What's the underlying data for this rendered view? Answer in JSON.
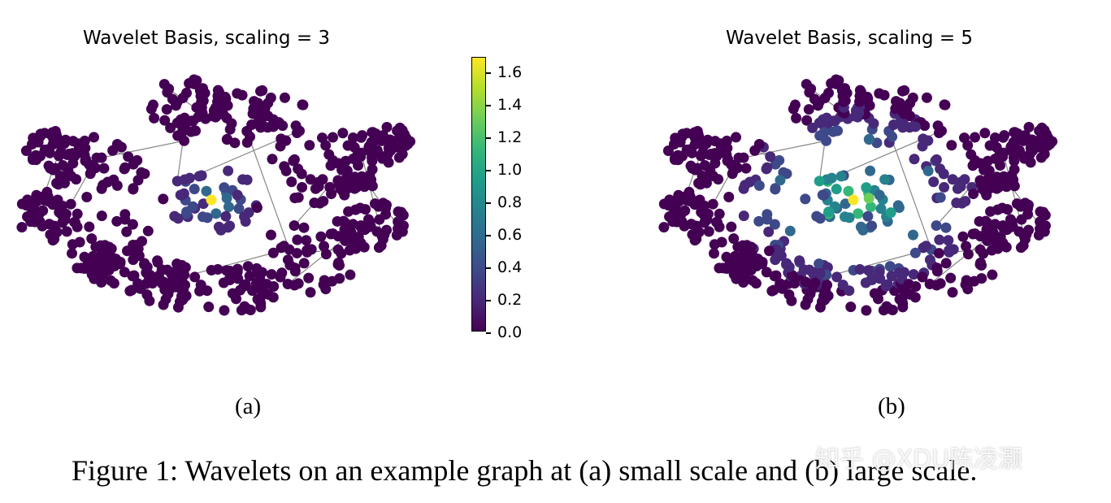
{
  "figure": {
    "panels": [
      {
        "title": "Wavelet Basis, scaling = 3",
        "sub_label": "(a)"
      },
      {
        "title": "Wavelet Basis, scaling = 5",
        "sub_label": "(b)"
      }
    ],
    "colorbar": {
      "ticks": [
        "1.6",
        "1.4",
        "1.2",
        "1.0",
        "0.8",
        "0.6",
        "0.4",
        "0.2",
        "0.0"
      ],
      "colormap": "viridis",
      "range": [
        0.0,
        1.7
      ]
    },
    "caption": "Figure 1: Wavelets on an example graph at (a) small scale and (b) large scale.",
    "watermark": "知乎 @XDU陈凌灏"
  },
  "colors": {
    "node_default": "#440154",
    "node_center": "#fde725",
    "edge": "#888888",
    "cmap_stops": [
      "#440154",
      "#482878",
      "#3e4989",
      "#31688e",
      "#26828e",
      "#1f9e89",
      "#35b779",
      "#6ece58",
      "#b5de2b",
      "#fde725"
    ]
  }
}
